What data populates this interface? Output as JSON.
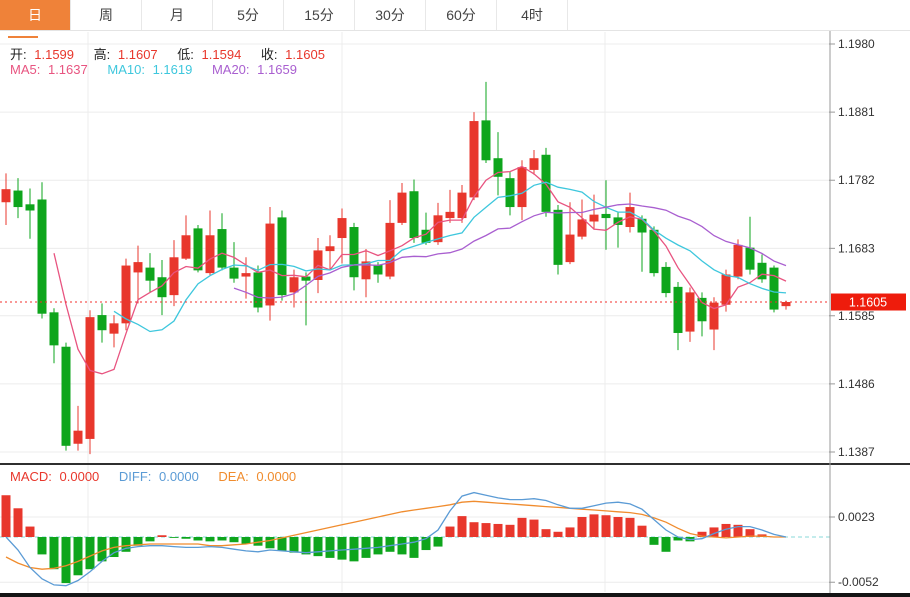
{
  "tabs": {
    "items": [
      {
        "name": "day",
        "label": "日",
        "active": true
      },
      {
        "name": "week",
        "label": "周",
        "active": false
      },
      {
        "name": "month",
        "label": "月",
        "active": false
      },
      {
        "name": "5min",
        "label": "5分",
        "active": false
      },
      {
        "name": "15min",
        "label": "15分",
        "active": false
      },
      {
        "name": "30min",
        "label": "30分",
        "active": false
      },
      {
        "name": "60min",
        "label": "60分",
        "active": false
      },
      {
        "name": "4hour",
        "label": "4时",
        "active": false
      }
    ]
  },
  "legend": {
    "open_label": "开:",
    "open": "1.1599",
    "high_label": "高:",
    "high": "1.1607",
    "low_label": "低:",
    "low": "1.1594",
    "close_label": "收:",
    "close": "1.1605",
    "ma5_label": "MA5:",
    "ma5": "1.1637",
    "ma10_label": "MA10:",
    "ma10": "1.1619",
    "ma20_label": "MA20:",
    "ma20": "1.1659"
  },
  "sub_legend": {
    "macd_label": "MACD:",
    "macd": "0.0000",
    "diff_label": "DIFF:",
    "diff": "0.0000",
    "dea_label": "DEA:",
    "dea": "0.0000"
  },
  "colors": {
    "up": "#e8372c",
    "down": "#0ea51c",
    "ma5": "#e85480",
    "ma10": "#3ec7dd",
    "ma20": "#a95fd0",
    "diff": "#5b9bd5",
    "dea": "#f08c2e",
    "badge_bg": "#ee1c0c",
    "badge_text": "#ffffff",
    "grid": "#ececec",
    "axis": "#999999",
    "tick_text": "#333333",
    "tab_active_bg": "#ef8239",
    "price_line": "#f3302c",
    "zero_dash": "#8ad8da",
    "label_text": "#222222",
    "divider": "#2f2f2f",
    "bottom_bar": "#141414"
  },
  "chart_data": {
    "type": "candlestick+macd",
    "title": "EUR/USD daily candlestick chart with MACD",
    "main": {
      "ylim": [
        1.1387,
        1.198
      ],
      "y_ticks": [
        1.198,
        1.1881,
        1.1782,
        1.1683,
        1.1585,
        1.1486,
        1.1387
      ],
      "price_marker": 1.1605,
      "ma_periods": [
        5,
        10,
        20
      ],
      "ohlc": [
        [
          1.175,
          1.1792,
          1.1717,
          1.1769
        ],
        [
          1.1767,
          1.1785,
          1.1727,
          1.1743
        ],
        [
          1.1747,
          1.177,
          1.1697,
          1.1738
        ],
        [
          1.1754,
          1.1779,
          1.1581,
          1.1588
        ],
        [
          1.159,
          1.1596,
          1.1516,
          1.1542
        ],
        [
          1.154,
          1.1546,
          1.1389,
          1.1396
        ],
        [
          1.1399,
          1.1454,
          1.1389,
          1.1418
        ],
        [
          1.1406,
          1.1593,
          1.1384,
          1.1583
        ],
        [
          1.1586,
          1.1603,
          1.1546,
          1.1564
        ],
        [
          1.1559,
          1.1586,
          1.1539,
          1.1574
        ],
        [
          1.1574,
          1.1668,
          1.1564,
          1.1658
        ],
        [
          1.1648,
          1.1687,
          1.1603,
          1.1663
        ],
        [
          1.1655,
          1.1676,
          1.1619,
          1.1636
        ],
        [
          1.1641,
          1.1666,
          1.1586,
          1.1612
        ],
        [
          1.1615,
          1.1695,
          1.1599,
          1.167
        ],
        [
          1.1668,
          1.1731,
          1.1666,
          1.1702
        ],
        [
          1.1712,
          1.1717,
          1.1648,
          1.1651
        ],
        [
          1.1647,
          1.1738,
          1.1644,
          1.1702
        ],
        [
          1.1711,
          1.1734,
          1.1651,
          1.1655
        ],
        [
          1.1655,
          1.1692,
          1.1633,
          1.1639
        ],
        [
          1.1642,
          1.167,
          1.161,
          1.1647
        ],
        [
          1.1648,
          1.1658,
          1.159,
          1.1597
        ],
        [
          1.16,
          1.1743,
          1.1578,
          1.1719
        ],
        [
          1.1728,
          1.1738,
          1.1607,
          1.1615
        ],
        [
          1.1619,
          1.1652,
          1.1597,
          1.1641
        ],
        [
          1.1642,
          1.1648,
          1.1571,
          1.1636
        ],
        [
          1.1637,
          1.1698,
          1.1618,
          1.168
        ],
        [
          1.1679,
          1.1702,
          1.1651,
          1.1686
        ],
        [
          1.1698,
          1.1741,
          1.1661,
          1.1727
        ],
        [
          1.1714,
          1.172,
          1.1622,
          1.1641
        ],
        [
          1.1638,
          1.1682,
          1.1612,
          1.1664
        ],
        [
          1.1659,
          1.1663,
          1.1633,
          1.1645
        ],
        [
          1.1642,
          1.1753,
          1.1638,
          1.172
        ],
        [
          1.172,
          1.1778,
          1.1717,
          1.1764
        ],
        [
          1.1766,
          1.1783,
          1.1691,
          1.1698
        ],
        [
          1.171,
          1.1735,
          1.1688,
          1.1691
        ],
        [
          1.1692,
          1.1749,
          1.1688,
          1.1731
        ],
        [
          1.1727,
          1.1768,
          1.172,
          1.1736
        ],
        [
          1.1727,
          1.1775,
          1.172,
          1.1764
        ],
        [
          1.1757,
          1.1881,
          1.1753,
          1.1868
        ],
        [
          1.1869,
          1.1925,
          1.1807,
          1.1811
        ],
        [
          1.1814,
          1.1852,
          1.176,
          1.1787
        ],
        [
          1.1785,
          1.1794,
          1.1731,
          1.1743
        ],
        [
          1.1743,
          1.1811,
          1.1724,
          1.1801
        ],
        [
          1.1797,
          1.1826,
          1.179,
          1.1814
        ],
        [
          1.1819,
          1.1829,
          1.1729,
          1.1736
        ],
        [
          1.1739,
          1.1746,
          1.1645,
          1.1659
        ],
        [
          1.1663,
          1.175,
          1.166,
          1.1703
        ],
        [
          1.17,
          1.1754,
          1.1696,
          1.1725
        ],
        [
          1.1722,
          1.1761,
          1.171,
          1.1732
        ],
        [
          1.1733,
          1.1782,
          1.1681,
          1.1727
        ],
        [
          1.1728,
          1.1736,
          1.1684,
          1.1717
        ],
        [
          1.1714,
          1.1764,
          1.1706,
          1.1743
        ],
        [
          1.1726,
          1.1731,
          1.1649,
          1.1706
        ],
        [
          1.171,
          1.1715,
          1.1642,
          1.1647
        ],
        [
          1.1656,
          1.1663,
          1.1612,
          1.1618
        ],
        [
          1.1627,
          1.1634,
          1.1535,
          1.156
        ],
        [
          1.1562,
          1.1626,
          1.1547,
          1.1619
        ],
        [
          1.1611,
          1.1619,
          1.1555,
          1.1577
        ],
        [
          1.1565,
          1.1612,
          1.1535,
          1.1604
        ],
        [
          1.1601,
          1.1652,
          1.1591,
          1.1645
        ],
        [
          1.1642,
          1.1696,
          1.1638,
          1.1688
        ],
        [
          1.1684,
          1.1729,
          1.1645,
          1.1652
        ],
        [
          1.1662,
          1.1674,
          1.1633,
          1.1638
        ],
        [
          1.1655,
          1.1658,
          1.159,
          1.1594
        ],
        [
          1.1599,
          1.1607,
          1.1594,
          1.1605
        ]
      ]
    },
    "sub": {
      "y_ticks": [
        0.0023,
        -0.0052
      ],
      "hist": [
        0.0048,
        0.0033,
        0.0012,
        -0.002,
        -0.0037,
        -0.0053,
        -0.0044,
        -0.0037,
        -0.0028,
        -0.0023,
        -0.0017,
        -0.001,
        -0.0005,
        0.0002,
        -0.0001,
        -0.0002,
        -0.0004,
        -0.0005,
        -0.0004,
        -0.0006,
        -0.0008,
        -0.001,
        -0.0013,
        -0.0016,
        -0.0018,
        -0.002,
        -0.0022,
        -0.0024,
        -0.0026,
        -0.0028,
        -0.0024,
        -0.002,
        -0.0017,
        -0.002,
        -0.0024,
        -0.0015,
        -0.0011,
        0.0012,
        0.0024,
        0.0017,
        0.0016,
        0.0015,
        0.0014,
        0.0022,
        0.002,
        0.0009,
        0.0006,
        0.0011,
        0.0023,
        0.0026,
        0.0025,
        0.0023,
        0.0022,
        0.0013,
        -0.0009,
        -0.0017,
        -0.0004,
        -0.0005,
        0.0006,
        0.0011,
        0.0015,
        0.0014,
        0.0009,
        0.0003,
        0.0,
        0.0
      ],
      "diff": [
        0.0,
        -0.0015,
        -0.0035,
        -0.0048,
        -0.0055,
        -0.0056,
        -0.005,
        -0.004,
        -0.0028,
        -0.0018,
        -0.0013,
        -0.0011,
        -0.001,
        -0.001,
        -0.0011,
        -0.0012,
        -0.0012,
        -0.0011,
        -0.0012,
        -0.0014,
        -0.0016,
        -0.0017,
        -0.0015,
        -0.0016,
        -0.0017,
        -0.0018,
        -0.0017,
        -0.0016,
        -0.0015,
        -0.0014,
        -0.0013,
        -0.0012,
        -0.001,
        -0.0008,
        -0.0006,
        -0.0002,
        0.0008,
        0.003,
        0.0047,
        0.0051,
        0.0048,
        0.0045,
        0.0043,
        0.0043,
        0.0044,
        0.0042,
        0.0037,
        0.0033,
        0.0033,
        0.0036,
        0.0039,
        0.004,
        0.0038,
        0.0032,
        0.002,
        0.0008,
        0.0,
        -0.0003,
        -0.0002,
        0.0004,
        0.0009,
        0.0012,
        0.0012,
        0.0008,
        0.0003,
        0.0
      ],
      "dea": [
        -0.0023,
        -0.003,
        -0.0035,
        -0.0037,
        -0.0036,
        -0.0033,
        -0.0028,
        -0.0022,
        -0.0016,
        -0.0012,
        -0.001,
        -0.0009,
        -0.0008,
        -0.0008,
        -0.0008,
        -0.0008,
        -0.0008,
        -0.001,
        -0.001,
        -0.0009,
        -0.0008,
        -0.0006,
        -0.0004,
        -0.0001,
        0.0002,
        0.0005,
        0.0008,
        0.0011,
        0.0014,
        0.0017,
        0.002,
        0.0023,
        0.0026,
        0.0029,
        0.0031,
        0.0033,
        0.0035,
        0.0037,
        0.004,
        0.0041,
        0.004,
        0.0039,
        0.0038,
        0.0037,
        0.0036,
        0.0035,
        0.0034,
        0.0033,
        0.0032,
        0.0031,
        0.003,
        0.0029,
        0.0028,
        0.0026,
        0.0022,
        0.0017,
        0.001,
        0.0004,
        0.0001,
        0.0,
        -0.0001,
        0.0,
        0.0001,
        0.0001,
        0.0,
        0.0
      ]
    }
  }
}
